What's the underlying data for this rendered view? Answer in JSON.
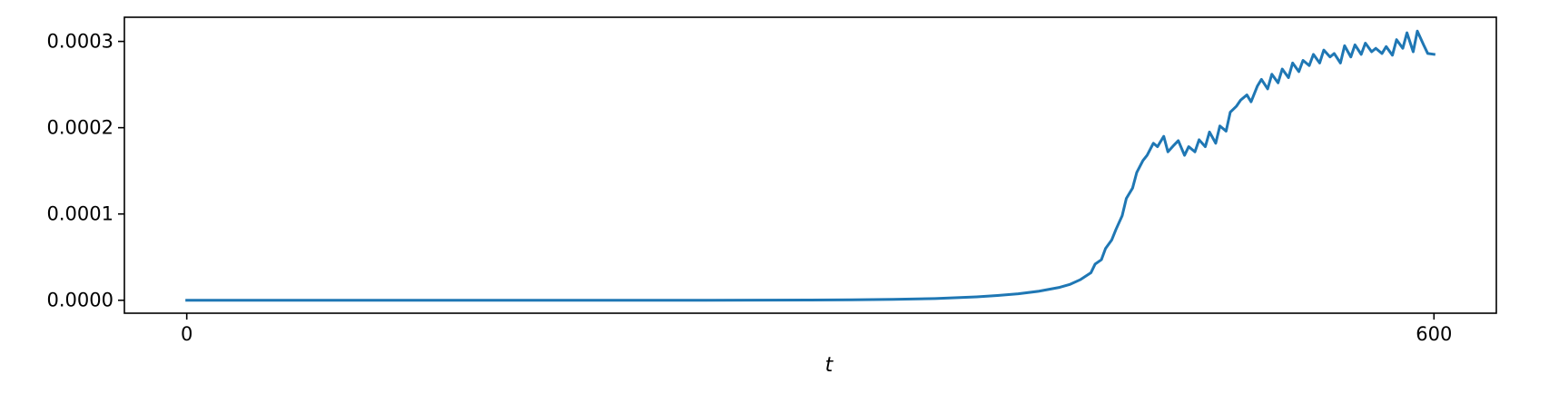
{
  "chart_data": {
    "type": "line",
    "title": "",
    "xlabel": "t",
    "ylabel": "",
    "xlim": [
      -30,
      630
    ],
    "ylim": [
      -1.5e-05,
      0.000328
    ],
    "x_ticks": [
      0,
      600
    ],
    "x_tick_labels": [
      "0",
      "600"
    ],
    "y_ticks": [
      0,
      0.0001,
      0.0002,
      0.0003
    ],
    "y_tick_labels": [
      "0.0000",
      "0.0001",
      "0.0002",
      "0.0003"
    ],
    "grid": false,
    "series": [
      {
        "color": "#1f77b4",
        "x": [
          0,
          50,
          100,
          150,
          200,
          250,
          300,
          320,
          340,
          360,
          380,
          390,
          400,
          410,
          420,
          425,
          430,
          435,
          437,
          440,
          442,
          445,
          447,
          450,
          452,
          455,
          457,
          460,
          462,
          465,
          467,
          470,
          472,
          475,
          477,
          480,
          482,
          485,
          487,
          490,
          492,
          495,
          497,
          500,
          502,
          505,
          507,
          510,
          512,
          515,
          517,
          520,
          522,
          525,
          527,
          530,
          532,
          535,
          537,
          540,
          542,
          545,
          547,
          550,
          552,
          555,
          557,
          560,
          562,
          565,
          567,
          570,
          572,
          575,
          577,
          580,
          582,
          585,
          587,
          590,
          592,
          595,
          597,
          600
        ],
        "y": [
          0,
          0,
          0,
          0,
          0,
          0,
          2e-07,
          5e-07,
          1e-06,
          2e-06,
          4e-06,
          5.5e-06,
          7.5e-06,
          1.05e-05,
          1.5e-05,
          1.85e-05,
          2.4e-05,
          3.2e-05,
          4.2e-05,
          4.7e-05,
          6e-05,
          7e-05,
          8.2e-05,
          9.8e-05,
          0.000118,
          0.00013,
          0.000148,
          0.000162,
          0.000168,
          0.000182,
          0.000178,
          0.00019,
          0.000172,
          0.00018,
          0.000185,
          0.000168,
          0.000178,
          0.000172,
          0.000186,
          0.000178,
          0.000195,
          0.000182,
          0.000202,
          0.000196,
          0.000218,
          0.000225,
          0.000232,
          0.000238,
          0.00023,
          0.000248,
          0.000256,
          0.000245,
          0.000262,
          0.000252,
          0.000268,
          0.000258,
          0.000275,
          0.000265,
          0.000278,
          0.000272,
          0.000285,
          0.000275,
          0.00029,
          0.000282,
          0.000286,
          0.000275,
          0.000295,
          0.000282,
          0.000296,
          0.000285,
          0.000298,
          0.000288,
          0.000292,
          0.000286,
          0.000294,
          0.000284,
          0.000302,
          0.000292,
          0.00031,
          0.000288,
          0.000312,
          0.000296,
          0.000286,
          0.000285
        ]
      }
    ]
  }
}
